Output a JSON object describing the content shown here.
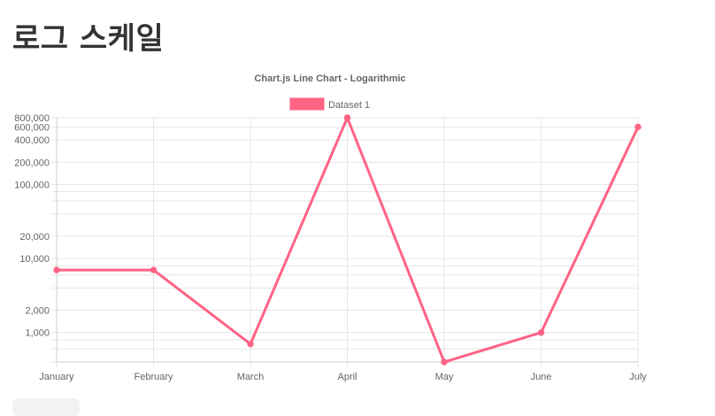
{
  "page": {
    "title": "로그 스케일"
  },
  "chart_data": {
    "type": "line",
    "title": "Chart.js Line Chart - Logarithmic",
    "categories": [
      "January",
      "February",
      "March",
      "April",
      "May",
      "June",
      "July"
    ],
    "series": [
      {
        "name": "Dataset 1",
        "values": [
          7000,
          7000,
          700,
          800000,
          400,
          1000,
          600000
        ],
        "color": "#ff6384"
      }
    ],
    "y_scale": "log",
    "ylim": [
      400,
      800000
    ],
    "y_tick_labels": [
      "800,000",
      "600,000",
      "400,000",
      "200,000",
      "100,000",
      "20,000",
      "10,000",
      "2,000",
      "1,000"
    ],
    "grid": true,
    "legend_position": "top"
  }
}
